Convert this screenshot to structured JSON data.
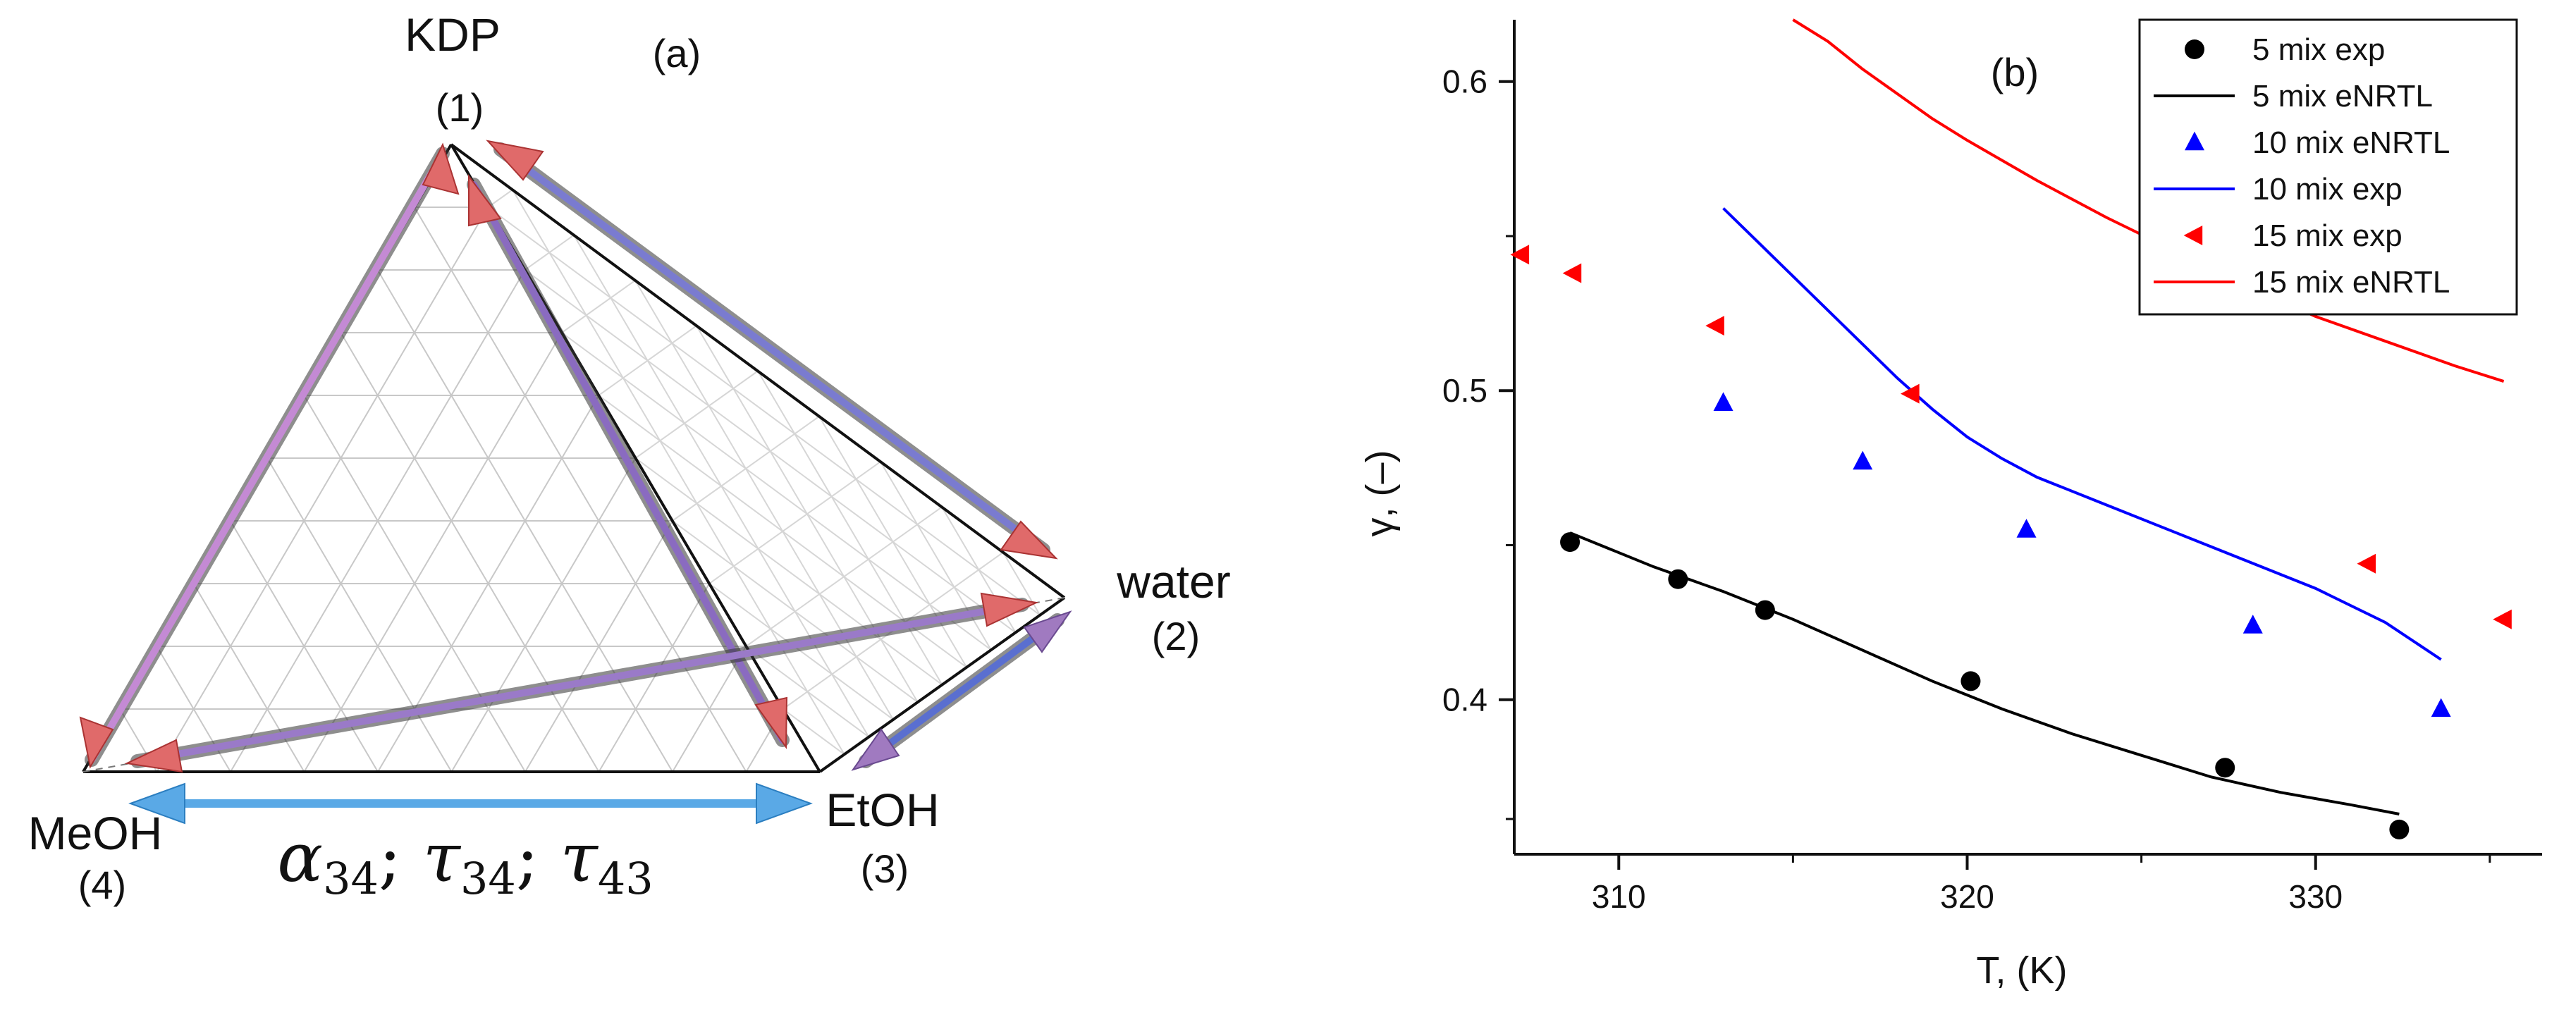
{
  "panel_a": {
    "label": "(a)",
    "vertices": [
      {
        "name": "KDP",
        "index": "(1)"
      },
      {
        "name": "water",
        "index": "(2)"
      },
      {
        "name": "EtOH",
        "index": "(3)"
      },
      {
        "name": "MeOH",
        "index": "(4)"
      }
    ],
    "parameters": "α34; τ34; τ43",
    "parameters_parts": {
      "a": "α",
      "a_sub": "34",
      "t1": "τ",
      "t1_sub": "34",
      "t2": "τ",
      "t2_sub": "43"
    },
    "colors": {
      "arrow_red": "#e06a6a",
      "arrow_blue": "#5aa9e6",
      "arrow_purple": "#a07ac0"
    }
  },
  "chart_data": {
    "type": "scatter",
    "panel_label": "(b)",
    "xlabel": "T, (K)",
    "ylabel": "γ, (–)",
    "xlim": [
      307,
      336.5
    ],
    "ylim": [
      0.35,
      0.62
    ],
    "xticks": [
      310,
      320,
      330
    ],
    "yticks": [
      0.4,
      0.5,
      0.6
    ],
    "legend_position": "top-right",
    "series": [
      {
        "name": "5 mix exp",
        "kind": "markers",
        "marker": "circle",
        "color": "#000000",
        "x": [
          308.6,
          311.7,
          314.2,
          320.1,
          327.4,
          332.4
        ],
        "y": [
          0.451,
          0.439,
          0.429,
          0.406,
          0.378,
          0.358
        ]
      },
      {
        "name": "5 mix eNRTL",
        "kind": "line",
        "color": "#000000",
        "x": [
          308.6,
          311,
          313,
          315,
          317,
          319,
          321,
          323,
          325,
          327,
          329,
          331,
          332.4
        ],
        "y": [
          0.454,
          0.443,
          0.435,
          0.426,
          0.416,
          0.406,
          0.397,
          0.389,
          0.382,
          0.375,
          0.37,
          0.366,
          0.363
        ]
      },
      {
        "name": "10 mix eNRTL",
        "kind": "markers",
        "marker": "triangle-up",
        "color": "#0000ff",
        "x": [
          313.0,
          317.0,
          321.7,
          328.2,
          333.6
        ],
        "y": [
          0.496,
          0.477,
          0.455,
          0.424,
          0.397
        ]
      },
      {
        "name": "10 mix exp",
        "kind": "line",
        "color": "#0000ff",
        "x": [
          313.0,
          314,
          315,
          316,
          317,
          318,
          319,
          320,
          321,
          322,
          324,
          326,
          328,
          330,
          332,
          333.6
        ],
        "y": [
          0.559,
          0.548,
          0.537,
          0.526,
          0.515,
          0.504,
          0.494,
          0.485,
          0.478,
          0.472,
          0.463,
          0.454,
          0.445,
          0.436,
          0.425,
          0.413
        ]
      },
      {
        "name": "15 mix exp",
        "kind": "markers",
        "marker": "triangle-left",
        "color": "#ff0000",
        "x": [
          307.2,
          308.7,
          312.8,
          318.4,
          331.5,
          335.4
        ],
        "y": [
          0.544,
          0.538,
          0.521,
          0.499,
          0.444,
          0.426
        ]
      },
      {
        "name": "15 mix eNRTL",
        "kind": "line",
        "color": "#ff0000",
        "x": [
          315.0,
          316,
          317,
          318,
          319,
          320,
          322,
          324,
          326,
          328,
          330,
          332,
          334,
          335.4
        ],
        "y": [
          0.62,
          0.613,
          0.604,
          0.596,
          0.588,
          0.581,
          0.568,
          0.556,
          0.545,
          0.534,
          0.524,
          0.516,
          0.508,
          0.503
        ]
      }
    ]
  }
}
